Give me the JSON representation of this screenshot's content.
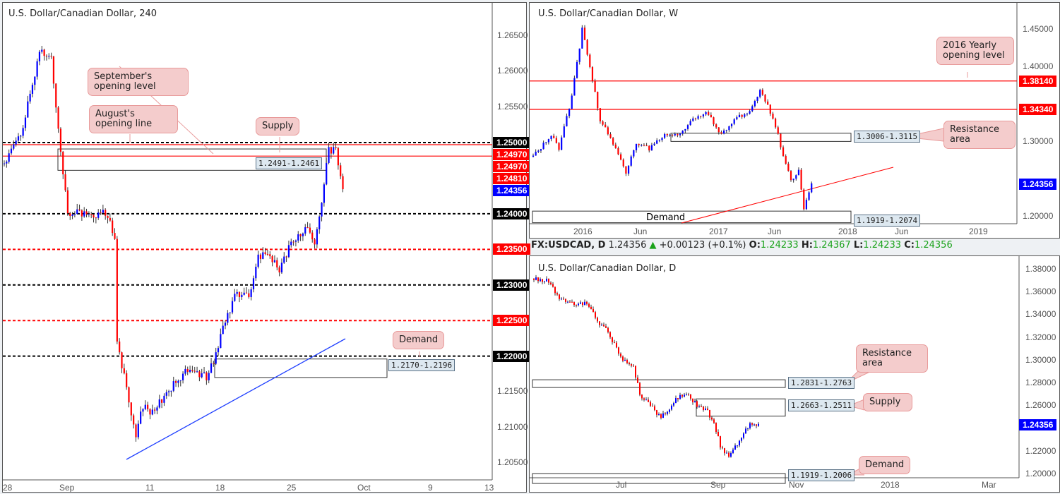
{
  "left": {
    "title": "U.S. Dollar/Canadian Dollar, 240",
    "price_ticks": [
      "1.26500",
      "1.26000",
      "1.25500",
      "1.20500",
      "1.21000",
      "1.21500"
    ],
    "tags": [
      {
        "text": "1.25000",
        "color": "#000000"
      },
      {
        "text": "1.24970",
        "color": "#ff0000"
      },
      {
        "text": "1.24970",
        "color": "#ff0000"
      },
      {
        "text": "1.24810",
        "color": "#ff0000"
      },
      {
        "text": "1.24356",
        "color": "#0000ff"
      },
      {
        "text": "1.24000",
        "color": "#000000"
      },
      {
        "text": "1.23500",
        "color": "#ff0000"
      },
      {
        "text": "1.23000",
        "color": "#000000"
      },
      {
        "text": "1.22500",
        "color": "#ff0000"
      },
      {
        "text": "1.22000",
        "color": "#000000"
      }
    ],
    "time_ticks": [
      "28",
      "Sep",
      "11",
      "18",
      "25",
      "Oct",
      "9",
      "13"
    ],
    "callouts": {
      "sept": "September's opening level",
      "aug": "August's opening line",
      "supply": "Supply",
      "demand": "Demand"
    },
    "zones": {
      "supply": "1.2491-1.2461",
      "demand": "1.2170-1.2196"
    }
  },
  "right_top": {
    "title": "U.S. Dollar/Canadian Dollar, W",
    "price_ticks": [
      "1.45000",
      "1.40000",
      "1.30000",
      "1.20000"
    ],
    "tags": [
      {
        "text": "1.38140",
        "color": "#ff0000"
      },
      {
        "text": "1.34340",
        "color": "#ff0000"
      },
      {
        "text": "1.24356",
        "color": "#0000ff"
      }
    ],
    "time_ticks": [
      "2016",
      "Jun",
      "2017",
      "Jun",
      "2018",
      "Jun",
      "2019"
    ],
    "callouts": {
      "yearly": "2016 Yearly opening level",
      "resistance": "Resistance area"
    },
    "zones": {
      "resistance": "1.3006-1.3115",
      "demand": "1.1919-1.2074",
      "demand_label": "Demand"
    }
  },
  "header": {
    "symbol": "FX:USDCAD, D",
    "price": "1.24356",
    "change": "+0.00123 (+0.1%)",
    "o_label": "O:",
    "o": "1.24233",
    "h_label": "H:",
    "h": "1.24367",
    "l_label": "L:",
    "l": "1.24233",
    "c_label": "C:",
    "c": "1.24356"
  },
  "right_bottom": {
    "title": "U.S. Dollar/Canadian Dollar, D",
    "price_ticks": [
      "1.38000",
      "1.36000",
      "1.34000",
      "1.32000",
      "1.30000",
      "1.28000",
      "1.26000",
      "1.22000",
      "1.20000"
    ],
    "tags": [
      {
        "text": "1.24356",
        "color": "#0000ff"
      }
    ],
    "time_ticks": [
      "Jul",
      "Sep",
      "Nov",
      "2018",
      "Mar"
    ],
    "callouts": {
      "resistance": "Resistance area",
      "supply": "Supply",
      "demand": "Demand"
    },
    "zones": {
      "resistance": "1.2831-1.2763",
      "supply": "1.2663-1.2511",
      "demand": "1.1919-1.2006"
    }
  },
  "chart_data": [
    {
      "type": "candlestick",
      "title": "U.S. Dollar/Canadian Dollar, 240",
      "ylim": [
        1.2025,
        1.2685
      ],
      "bars": 145,
      "close_anchors": [
        [
          0,
          1.247
        ],
        [
          8,
          1.252
        ],
        [
          15,
          1.263
        ],
        [
          20,
          1.262
        ],
        [
          24,
          1.249
        ],
        [
          27,
          1.24
        ],
        [
          32,
          1.24
        ],
        [
          44,
          1.24
        ],
        [
          47,
          1.236
        ],
        [
          48,
          1.222
        ],
        [
          53,
          1.214
        ],
        [
          56,
          1.209
        ],
        [
          59,
          1.213
        ],
        [
          63,
          1.212
        ],
        [
          69,
          1.215
        ],
        [
          77,
          1.218
        ],
        [
          86,
          1.217
        ],
        [
          89,
          1.219
        ],
        [
          95,
          1.226
        ],
        [
          99,
          1.229
        ],
        [
          104,
          1.228
        ],
        [
          108,
          1.234
        ],
        [
          113,
          1.234
        ],
        [
          117,
          1.232
        ],
        [
          122,
          1.236
        ],
        [
          128,
          1.238
        ],
        [
          132,
          1.236
        ],
        [
          135,
          1.242
        ],
        [
          138,
          1.249
        ],
        [
          141,
          1.249
        ],
        [
          144,
          1.2435
        ]
      ],
      "levels": [
        1.25,
        1.2497,
        1.2481,
        1.24,
        1.235,
        1.23,
        1.225,
        1.22
      ]
    },
    {
      "type": "candlestick",
      "title": "U.S. Dollar/Canadian Dollar, W",
      "ylim": [
        1.185,
        1.475
      ],
      "bars": 109,
      "close_anchors": [
        [
          0,
          1.28
        ],
        [
          7,
          1.31
        ],
        [
          10,
          1.29
        ],
        [
          15,
          1.36
        ],
        [
          19,
          1.45
        ],
        [
          22,
          1.4
        ],
        [
          26,
          1.33
        ],
        [
          32,
          1.29
        ],
        [
          36,
          1.26
        ],
        [
          40,
          1.3
        ],
        [
          45,
          1.29
        ],
        [
          51,
          1.31
        ],
        [
          56,
          1.31
        ],
        [
          62,
          1.33
        ],
        [
          67,
          1.34
        ],
        [
          73,
          1.31
        ],
        [
          78,
          1.33
        ],
        [
          84,
          1.34
        ],
        [
          88,
          1.37
        ],
        [
          92,
          1.34
        ],
        [
          95,
          1.31
        ],
        [
          97,
          1.28
        ],
        [
          100,
          1.25
        ],
        [
          103,
          1.26
        ],
        [
          105,
          1.21
        ],
        [
          108,
          1.2435
        ]
      ],
      "levels": [
        1.3814,
        1.3434
      ]
    },
    {
      "type": "candlestick",
      "title": "U.S. Dollar/Canadian Dollar, D",
      "ylim": [
        1.194,
        1.388
      ],
      "bars": 107,
      "close_anchors": [
        [
          0,
          1.372
        ],
        [
          7,
          1.37
        ],
        [
          12,
          1.355
        ],
        [
          18,
          1.35
        ],
        [
          25,
          1.35
        ],
        [
          30,
          1.335
        ],
        [
          35,
          1.325
        ],
        [
          42,
          1.3
        ],
        [
          47,
          1.295
        ],
        [
          50,
          1.27
        ],
        [
          55,
          1.26
        ],
        [
          60,
          1.25
        ],
        [
          63,
          1.255
        ],
        [
          68,
          1.268
        ],
        [
          73,
          1.27
        ],
        [
          77,
          1.26
        ],
        [
          82,
          1.255
        ],
        [
          85,
          1.245
        ],
        [
          88,
          1.225
        ],
        [
          92,
          1.215
        ],
        [
          97,
          1.23
        ],
        [
          102,
          1.245
        ],
        [
          106,
          1.2435
        ]
      ]
    }
  ]
}
